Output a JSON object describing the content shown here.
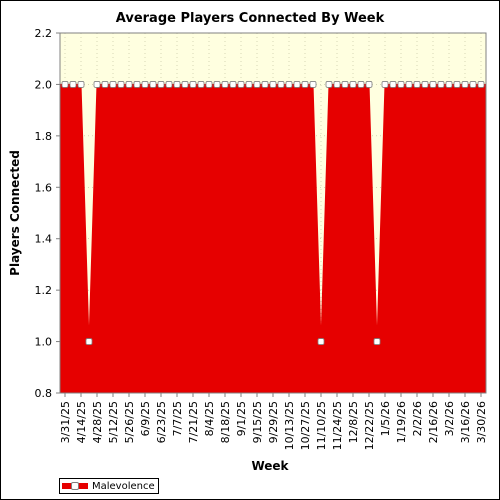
{
  "chart_data": {
    "type": "area",
    "title": "Average Players Connected By Week",
    "xlabel": "Week",
    "ylabel": "Players Connected",
    "ylim": [
      0.8,
      2.2
    ],
    "yticks": [
      "0.8",
      "1.0",
      "1.2",
      "1.4",
      "1.6",
      "1.8",
      "2.0",
      "2.2"
    ],
    "x": [
      "3/31/25",
      "4/7/25",
      "4/14/25",
      "4/21/25",
      "4/28/25",
      "5/5/25",
      "5/12/25",
      "5/19/25",
      "5/26/25",
      "6/2/25",
      "6/9/25",
      "6/16/25",
      "6/23/25",
      "6/30/25",
      "7/7/25",
      "7/14/25",
      "7/21/25",
      "7/28/25",
      "8/4/25",
      "8/11/25",
      "8/18/25",
      "8/25/25",
      "9/1/25",
      "9/8/25",
      "9/15/25",
      "9/22/25",
      "9/29/25",
      "10/6/25",
      "10/13/25",
      "10/20/25",
      "10/27/25",
      "11/3/25",
      "11/10/25",
      "11/17/25",
      "11/24/25",
      "12/1/25",
      "12/8/25",
      "12/15/25",
      "12/22/25",
      "12/29/25",
      "1/5/26",
      "1/12/26",
      "1/19/26",
      "1/26/26",
      "2/2/26",
      "2/9/26",
      "2/16/26",
      "2/23/26",
      "3/2/26",
      "3/9/26",
      "3/16/26",
      "3/23/26",
      "3/30/26"
    ],
    "xticks_shown": [
      "3/31/25",
      "4/14/25",
      "4/28/25",
      "5/12/25",
      "5/26/25",
      "6/9/25",
      "6/23/25",
      "7/7/25",
      "7/21/25",
      "8/4/25",
      "8/18/25",
      "9/1/25",
      "9/15/25",
      "9/29/25",
      "10/13/25",
      "10/27/25",
      "11/10/25",
      "11/24/25",
      "12/8/25",
      "12/22/25",
      "1/5/26",
      "1/19/26",
      "2/2/26",
      "2/16/26",
      "3/2/26",
      "3/16/26",
      "3/30/26"
    ],
    "series": [
      {
        "name": "Malevolence",
        "color": "#e60000",
        "values": [
          2,
          2,
          2,
          1,
          2,
          2,
          2,
          2,
          2,
          2,
          2,
          2,
          2,
          2,
          2,
          2,
          2,
          2,
          2,
          2,
          2,
          2,
          2,
          2,
          2,
          2,
          2,
          2,
          2,
          2,
          2,
          2,
          1,
          2,
          2,
          2,
          2,
          2,
          2,
          1,
          2,
          2,
          2,
          2,
          2,
          2,
          2,
          2,
          2,
          2,
          2,
          2,
          2
        ]
      }
    ],
    "legend_position": "bottom-left",
    "grid": true,
    "colors": {
      "plot_background": "#ffffe0",
      "area_fill": "#e60000",
      "grid": "#bdbd9a",
      "marker_fill": "#ffffff",
      "marker_edge": "#808080"
    }
  }
}
